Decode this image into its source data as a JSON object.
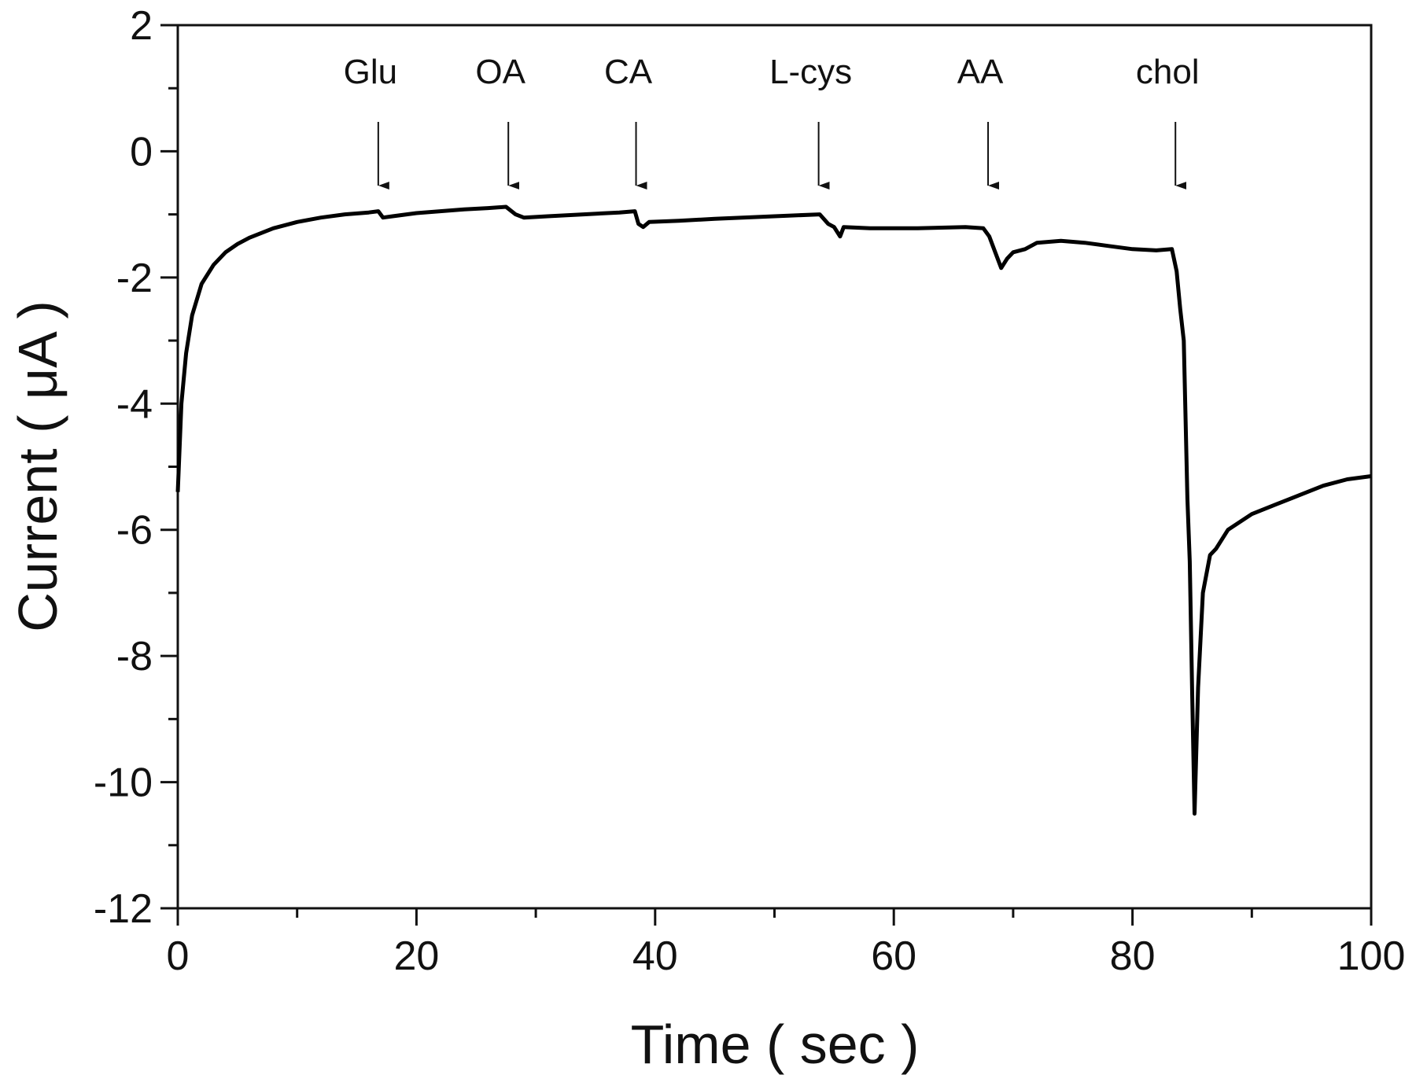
{
  "chart_data": {
    "type": "line",
    "xlabel": "Time ( sec )",
    "ylabel": "Current ( μA )",
    "x": [
      0,
      0.3,
      0.7,
      1.2,
      2,
      3,
      4,
      5,
      6,
      8,
      10,
      12,
      14,
      16,
      16.8,
      17.2,
      18,
      20,
      22,
      24,
      26,
      27.5,
      28.3,
      29,
      31,
      34,
      37,
      38.3,
      38.6,
      39,
      39.5,
      42,
      45,
      50,
      53.8,
      54.5,
      55,
      55.5,
      55.8,
      58,
      62,
      66,
      67.5,
      68,
      68.5,
      69,
      69.5,
      70,
      71,
      72,
      74,
      76,
      78,
      80,
      82,
      83.3,
      83.7,
      84,
      84.3,
      84.6,
      84.8,
      85.0,
      85.2,
      85.5,
      85.9,
      86.5,
      87,
      88,
      90,
      92,
      94,
      96,
      98,
      100
    ],
    "series": [
      {
        "name": "current",
        "color": "#000000",
        "values": [
          -5.4,
          -4.0,
          -3.2,
          -2.6,
          -2.1,
          -1.8,
          -1.6,
          -1.47,
          -1.37,
          -1.22,
          -1.12,
          -1.05,
          -1.0,
          -0.97,
          -0.95,
          -1.05,
          -1.03,
          -0.98,
          -0.95,
          -0.92,
          -0.9,
          -0.88,
          -1.0,
          -1.05,
          -1.03,
          -1.0,
          -0.97,
          -0.95,
          -1.15,
          -1.2,
          -1.12,
          -1.1,
          -1.07,
          -1.03,
          -1.0,
          -1.15,
          -1.2,
          -1.35,
          -1.2,
          -1.22,
          -1.22,
          -1.2,
          -1.22,
          -1.35,
          -1.6,
          -1.85,
          -1.7,
          -1.6,
          -1.55,
          -1.45,
          -1.42,
          -1.45,
          -1.5,
          -1.55,
          -1.57,
          -1.55,
          -1.9,
          -2.5,
          -3.0,
          -5.5,
          -6.5,
          -8.6,
          -10.5,
          -8.5,
          -7.0,
          -6.4,
          -6.3,
          -6.0,
          -5.75,
          -5.6,
          -5.45,
          -5.3,
          -5.2,
          -5.15
        ]
      }
    ],
    "xlim": [
      0,
      100
    ],
    "xticks": [
      0,
      20,
      40,
      60,
      80,
      100
    ],
    "xminorticks": [
      10,
      30,
      50,
      70,
      90
    ],
    "ylim": [
      -12,
      2
    ],
    "yticks": [
      2,
      0,
      -2,
      -4,
      -6,
      -8,
      -10,
      -12
    ],
    "yminorticks": [
      1,
      -1,
      -3,
      -5,
      -7,
      -9,
      -11
    ],
    "annotations": [
      {
        "text": "Glu",
        "x": 16.8
      },
      {
        "text": "OA",
        "x": 27.7
      },
      {
        "text": "CA",
        "x": 38.4
      },
      {
        "text": "L-cys",
        "x": 53.7
      },
      {
        "text": "AA",
        "x": 67.9
      },
      {
        "text": "chol",
        "x": 83.6
      }
    ]
  }
}
